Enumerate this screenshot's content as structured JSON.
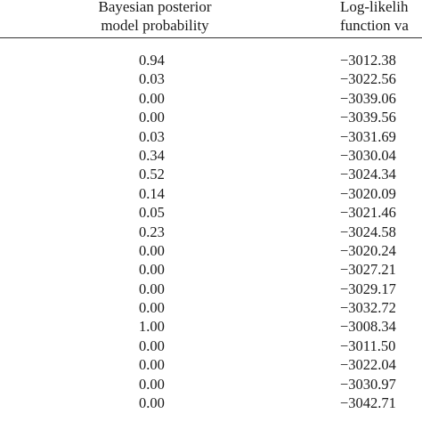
{
  "header": {
    "prob_line1": "Bayesian posterior",
    "prob_line2": "model probability",
    "ll_line1": "Log-likelih",
    "ll_line2": "function va"
  },
  "rows": [
    {
      "prob": "0.94",
      "ll": "−3012.38"
    },
    {
      "prob": "0.03",
      "ll": "−3022.56"
    },
    {
      "prob": "0.00",
      "ll": "−3039.06"
    },
    {
      "prob": "0.00",
      "ll": "−3039.56"
    },
    {
      "prob": "0.03",
      "ll": "−3031.69"
    },
    {
      "prob": "0.34",
      "ll": "−3030.04"
    },
    {
      "prob": "0.52",
      "ll": "−3024.34"
    },
    {
      "prob": "0.14",
      "ll": "−3020.09"
    },
    {
      "prob": "0.05",
      "ll": "−3021.46"
    },
    {
      "prob": "0.23",
      "ll": "−3024.58"
    },
    {
      "prob": "0.00",
      "ll": "−3020.24"
    },
    {
      "prob": "0.00",
      "ll": "−3027.21"
    },
    {
      "prob": "0.00",
      "ll": "−3029.17"
    },
    {
      "prob": "0.00",
      "ll": "−3032.72"
    },
    {
      "prob": "1.00",
      "ll": "−3008.34"
    },
    {
      "prob": "0.00",
      "ll": "−3011.50"
    },
    {
      "prob": "0.00",
      "ll": "−3022.04"
    },
    {
      "prob": "0.00",
      "ll": "−3030.97"
    },
    {
      "prob": "0.00",
      "ll": "−3042.71"
    }
  ]
}
